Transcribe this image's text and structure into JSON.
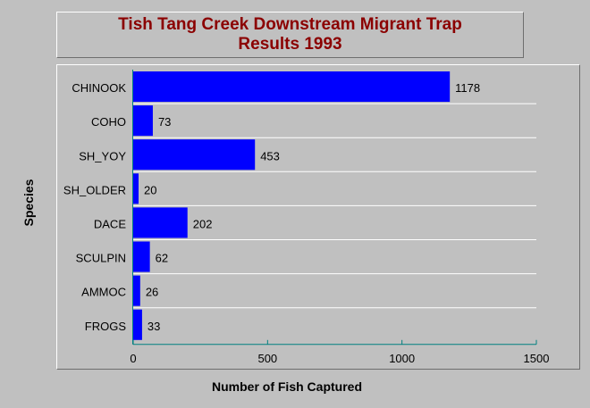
{
  "chart_data": {
    "type": "bar",
    "orientation": "horizontal",
    "title": [
      "Tish Tang Creek Downstream Migrant Trap",
      "Results 1993"
    ],
    "xlabel": "Number of Fish Captured",
    "ylabel": "Species",
    "categories": [
      "CHINOOK",
      "COHO",
      "SH_YOY",
      "SH_OLDER",
      "DACE",
      "SCULPIN",
      "AMMOC",
      "FROGS"
    ],
    "values": [
      1178,
      73,
      453,
      20,
      202,
      62,
      26,
      33
    ],
    "xlim": [
      0,
      1500
    ],
    "xticks": [
      0,
      500,
      1000,
      1500
    ],
    "grid": "horizontal",
    "colors": {
      "bar": "#0000ff",
      "axis": "#008080",
      "title": "#8b0000",
      "grid": "#ffffff"
    }
  }
}
